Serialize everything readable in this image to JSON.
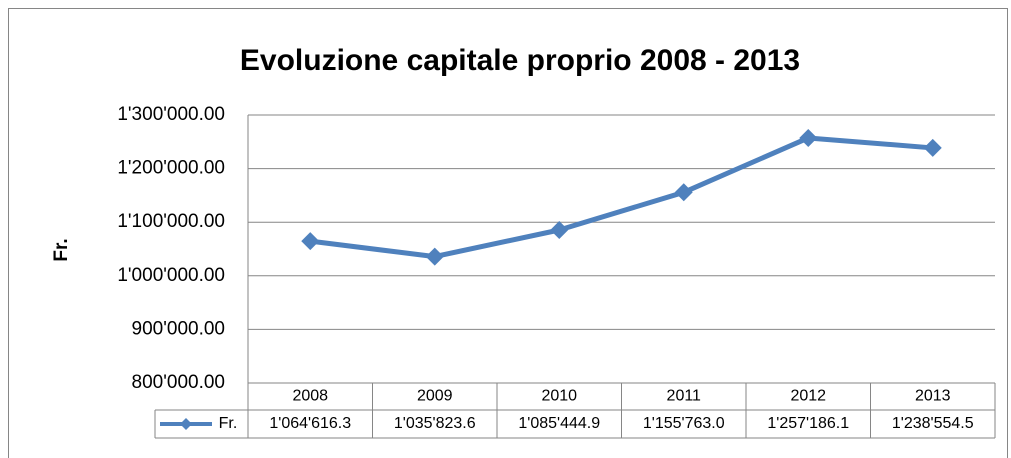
{
  "chart_data": {
    "type": "line",
    "title": "Evoluzione capitale proprio 2008 - 2013",
    "y_label": "Fr.",
    "categories": [
      "2008",
      "2009",
      "2010",
      "2011",
      "2012",
      "2013"
    ],
    "series": [
      {
        "name": "Fr.",
        "color": "#4f81bd",
        "values": [
          1064616.3,
          1035823.6,
          1085444.9,
          1155763.0,
          1257186.1,
          1238554.5
        ],
        "value_labels": [
          "1'064'616.3",
          "1'035'823.6",
          "1'085'444.9",
          "1'155'763.0",
          "1'257'186.1",
          "1'238'554.5"
        ]
      }
    ],
    "ylim": [
      800000,
      1300000
    ],
    "yticks": [
      {
        "value": 800000,
        "label": "800'000.00"
      },
      {
        "value": 900000,
        "label": "900'000.00"
      },
      {
        "value": 1000000,
        "label": "1'000'000.00"
      },
      {
        "value": 1100000,
        "label": "1'100'000.00"
      },
      {
        "value": 1200000,
        "label": "1'200'000.00"
      },
      {
        "value": 1300000,
        "label": "1'300'000.00"
      }
    ],
    "grid": true,
    "data_table": true
  }
}
